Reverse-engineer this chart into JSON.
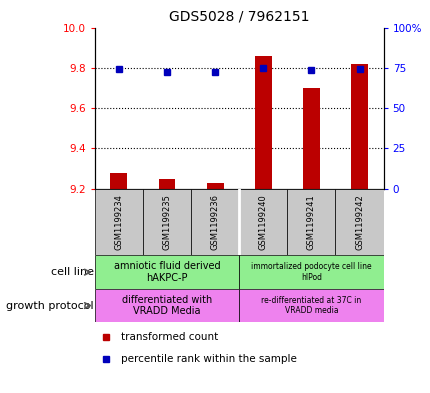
{
  "title": "GDS5028 / 7962151",
  "samples": [
    "GSM1199234",
    "GSM1199235",
    "GSM1199236",
    "GSM1199240",
    "GSM1199241",
    "GSM1199242"
  ],
  "red_values": [
    9.28,
    9.25,
    9.23,
    9.86,
    9.7,
    9.82
  ],
  "blue_values": [
    74.5,
    72.5,
    72.5,
    75.0,
    73.5,
    74.5
  ],
  "ylim_left": [
    9.2,
    10.0
  ],
  "ylim_right": [
    0,
    100
  ],
  "yticks_left": [
    9.2,
    9.4,
    9.6,
    9.8,
    10.0
  ],
  "yticks_right": [
    0,
    25,
    50,
    75,
    100
  ],
  "ytick_labels_right": [
    "0",
    "25",
    "50",
    "75",
    "100%"
  ],
  "red_color": "#bb0000",
  "blue_color": "#0000bb",
  "bar_base": 9.2,
  "cell_line_labels": [
    "amniotic fluid derived\nhAKPC-P",
    "immortalized podocyte cell line\nhIPod"
  ],
  "growth_protocol_labels": [
    "differentiated with\nVRADD Media",
    "re-differentiated at 37C in\nVRADD media"
  ],
  "cell_line_bg": "#90ee90",
  "growth_protocol_bg": "#ee82ee",
  "sample_label_bg": "#c8c8c8",
  "legend_items": [
    "transformed count",
    "percentile rank within the sample"
  ],
  "legend_colors": [
    "#bb0000",
    "#0000bb"
  ],
  "bar_width": 0.35
}
